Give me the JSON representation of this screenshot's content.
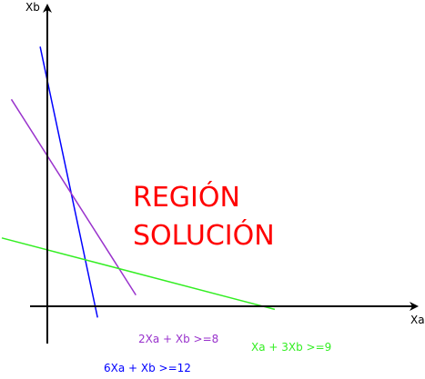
{
  "chart_data": {
    "type": "line",
    "xlabel": "Xa",
    "ylabel": "Xb",
    "region_label": [
      "REGIÓN",
      "SOLUCIÓN"
    ],
    "region_color": "#ff0000",
    "axis_color": "#000000",
    "series": [
      {
        "name": "6Xa + Xb >=12",
        "a": 6,
        "b": 1,
        "c": 12,
        "color": "#0000ff"
      },
      {
        "name": "2Xa + Xb >=8",
        "a": 2,
        "b": 1,
        "c": 8,
        "color": "#9932cc"
      },
      {
        "name": "Xa + 3Xb >=9",
        "a": 1,
        "b": 3,
        "c": 9,
        "color": "#33ee22"
      }
    ]
  }
}
